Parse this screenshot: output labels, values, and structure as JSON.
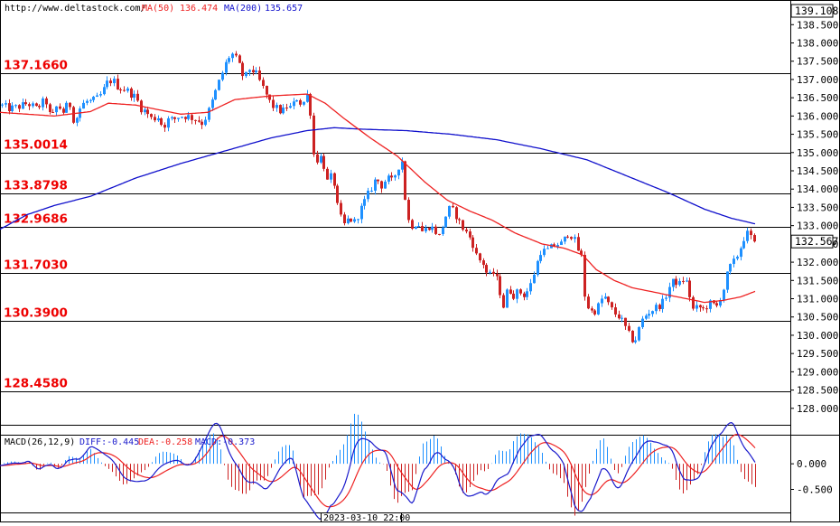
{
  "header": {
    "site_url": "http://www.deltastock.com/",
    "ma50_label": "MA(50)",
    "ma50_value": "136.474",
    "ma200_label": "MA(200)",
    "ma200_value": "135.657"
  },
  "colors": {
    "bull": "#1e90ff",
    "bear": "#cc2222",
    "ma50": "#ee2222",
    "ma200": "#1010cc",
    "level_text": "#ee0000",
    "diff": "#1a1acc",
    "dea": "#ee2222"
  },
  "chart_data": [
    {
      "type": "candlestick",
      "y_axis_ticks": [
        "128.000",
        "128.500",
        "129.000",
        "129.500",
        "130.000",
        "130.500",
        "131.000",
        "131.500",
        "132.000",
        "132.500",
        "133.000",
        "133.500",
        "134.000",
        "134.500",
        "135.000",
        "135.500",
        "136.000",
        "136.500",
        "137.000",
        "137.500",
        "138.000",
        "138.500"
      ],
      "ylim": [
        127.55,
        139.15
      ],
      "top_price_box": "139.108",
      "current_price_box": "132.567",
      "current_price": 132.567,
      "levels": [
        {
          "label": "137.1660",
          "value": 137.166
        },
        {
          "label": "135.0014",
          "value": 135.0014
        },
        {
          "label": "133.8798",
          "value": 133.8798
        },
        {
          "label": "132.9686",
          "value": 132.9686
        },
        {
          "label": "131.7030",
          "value": 131.703
        },
        {
          "label": "130.3900",
          "value": 130.39
        },
        {
          "label": "128.4580",
          "value": 128.458
        }
      ],
      "path_anchors": [
        [
          0,
          136.3
        ],
        [
          10,
          136.2
        ],
        [
          20,
          136.25
        ],
        [
          30,
          136.35
        ],
        [
          40,
          136.2
        ],
        [
          50,
          136.45
        ],
        [
          56,
          135.9
        ],
        [
          63,
          136.3
        ],
        [
          70,
          136.1
        ],
        [
          76,
          136.4
        ],
        [
          82,
          135.8
        ],
        [
          88,
          136.2
        ],
        [
          94,
          136.4
        ],
        [
          100,
          136.4
        ],
        [
          106,
          136.45
        ],
        [
          112,
          136.6
        ],
        [
          118,
          136.9
        ],
        [
          124,
          137.0
        ],
        [
          130,
          136.8
        ],
        [
          140,
          136.7
        ],
        [
          150,
          136.5
        ],
        [
          156,
          136.2
        ],
        [
          162,
          136.1
        ],
        [
          168,
          135.9
        ],
        [
          174,
          136.0
        ],
        [
          180,
          135.7
        ],
        [
          186,
          135.9
        ],
        [
          192,
          135.9
        ],
        [
          198,
          136.0
        ],
        [
          206,
          136.0
        ],
        [
          212,
          135.95
        ],
        [
          218,
          135.9
        ],
        [
          224,
          135.8
        ],
        [
          230,
          136.1
        ],
        [
          236,
          136.5
        ],
        [
          240,
          136.8
        ],
        [
          246,
          137.2
        ],
        [
          252,
          137.6
        ],
        [
          258,
          137.7
        ],
        [
          264,
          137.4
        ],
        [
          270,
          137.0
        ],
        [
          276,
          137.3
        ],
        [
          282,
          137.2
        ],
        [
          288,
          136.9
        ],
        [
          294,
          136.6
        ],
        [
          300,
          136.3
        ],
        [
          306,
          136.2
        ],
        [
          312,
          136.1
        ],
        [
          318,
          136.3
        ],
        [
          322,
          136.2
        ],
        [
          328,
          136.5
        ],
        [
          334,
          136.3
        ],
        [
          340,
          136.6
        ],
        [
          344,
          136.0
        ],
        [
          346,
          135.0
        ],
        [
          350,
          134.8
        ],
        [
          356,
          134.9
        ],
        [
          362,
          134.2
        ],
        [
          368,
          134.4
        ],
        [
          374,
          133.4
        ],
        [
          380,
          133.0
        ],
        [
          386,
          133.2
        ],
        [
          392,
          133.1
        ],
        [
          398,
          133.4
        ],
        [
          404,
          133.7
        ],
        [
          410,
          134.0
        ],
        [
          416,
          134.3
        ],
        [
          422,
          134.1
        ],
        [
          428,
          134.3
        ],
        [
          434,
          134.2
        ],
        [
          440,
          134.6
        ],
        [
          445,
          134.8
        ],
        [
          450,
          133.2
        ],
        [
          456,
          133.0
        ],
        [
          462,
          133.1
        ],
        [
          468,
          132.8
        ],
        [
          474,
          133.0
        ],
        [
          480,
          132.9
        ],
        [
          486,
          132.7
        ],
        [
          492,
          133.2
        ],
        [
          498,
          133.5
        ],
        [
          504,
          133.3
        ],
        [
          510,
          133.0
        ],
        [
          516,
          132.8
        ],
        [
          522,
          132.6
        ],
        [
          528,
          132.1
        ],
        [
          534,
          132.0
        ],
        [
          540,
          131.6
        ],
        [
          546,
          131.7
        ],
        [
          552,
          131.4
        ],
        [
          556,
          130.7
        ],
        [
          562,
          131.3
        ],
        [
          568,
          131.1
        ],
        [
          574,
          131.2
        ],
        [
          580,
          131.1
        ],
        [
          586,
          131.3
        ],
        [
          592,
          131.8
        ],
        [
          598,
          132.3
        ],
        [
          604,
          132.3
        ],
        [
          610,
          132.4
        ],
        [
          616,
          132.5
        ],
        [
          622,
          132.5
        ],
        [
          628,
          132.8
        ],
        [
          634,
          132.7
        ],
        [
          640,
          132.3
        ],
        [
          644,
          132.1
        ],
        [
          646,
          131.2
        ],
        [
          650,
          130.8
        ],
        [
          656,
          130.6
        ],
        [
          662,
          130.8
        ],
        [
          668,
          131.1
        ],
        [
          674,
          130.8
        ],
        [
          680,
          130.6
        ],
        [
          686,
          130.5
        ],
        [
          690,
          130.3
        ],
        [
          696,
          130.0
        ],
        [
          702,
          129.8
        ],
        [
          706,
          130.1
        ],
        [
          710,
          130.4
        ],
        [
          716,
          130.6
        ],
        [
          722,
          130.7
        ],
        [
          728,
          130.8
        ],
        [
          734,
          130.9
        ],
        [
          740,
          131.3
        ],
        [
          746,
          131.5
        ],
        [
          752,
          131.4
        ],
        [
          758,
          131.6
        ],
        [
          762,
          131.2
        ],
        [
          768,
          130.6
        ],
        [
          772,
          130.8
        ],
        [
          778,
          130.7
        ],
        [
          782,
          130.8
        ],
        [
          788,
          130.9
        ],
        [
          792,
          130.7
        ],
        [
          796,
          131.0
        ],
        [
          800,
          131.2
        ],
        [
          806,
          131.8
        ],
        [
          812,
          132.0
        ],
        [
          818,
          132.3
        ],
        [
          822,
          132.6
        ],
        [
          826,
          132.8
        ],
        [
          830,
          132.7
        ],
        [
          836,
          132.567
        ]
      ],
      "ma50_anchors": [
        [
          0,
          136.1
        ],
        [
          60,
          136.0
        ],
        [
          100,
          136.12
        ],
        [
          120,
          136.35
        ],
        [
          150,
          136.3
        ],
        [
          200,
          136.05
        ],
        [
          230,
          136.1
        ],
        [
          260,
          136.45
        ],
        [
          300,
          136.55
        ],
        [
          340,
          136.6
        ],
        [
          360,
          136.35
        ],
        [
          380,
          135.95
        ],
        [
          410,
          135.4
        ],
        [
          440,
          134.9
        ],
        [
          470,
          134.2
        ],
        [
          495,
          133.7
        ],
        [
          520,
          133.4
        ],
        [
          545,
          133.15
        ],
        [
          570,
          132.8
        ],
        [
          600,
          132.5
        ],
        [
          625,
          132.38
        ],
        [
          645,
          132.2
        ],
        [
          660,
          131.8
        ],
        [
          680,
          131.5
        ],
        [
          700,
          131.3
        ],
        [
          720,
          131.2
        ],
        [
          740,
          131.1
        ],
        [
          760,
          131.0
        ],
        [
          780,
          130.9
        ],
        [
          800,
          130.95
        ],
        [
          820,
          131.05
        ],
        [
          836,
          131.2
        ]
      ],
      "ma200_anchors": [
        [
          0,
          132.9
        ],
        [
          30,
          133.3
        ],
        [
          60,
          133.55
        ],
        [
          100,
          133.8
        ],
        [
          150,
          134.3
        ],
        [
          200,
          134.7
        ],
        [
          250,
          135.05
        ],
        [
          300,
          135.4
        ],
        [
          340,
          135.6
        ],
        [
          370,
          135.68
        ],
        [
          400,
          135.64
        ],
        [
          450,
          135.6
        ],
        [
          500,
          135.5
        ],
        [
          550,
          135.35
        ],
        [
          600,
          135.1
        ],
        [
          650,
          134.8
        ],
        [
          700,
          134.3
        ],
        [
          740,
          133.9
        ],
        [
          780,
          133.45
        ],
        [
          810,
          133.2
        ],
        [
          836,
          133.05
        ]
      ]
    },
    {
      "type": "macd",
      "title": "MACD(26,12,9)",
      "diff_label": "DIFF:-0.445",
      "dea_label": "DEA:-0.258",
      "macd_label": "MACD:-0.373",
      "y_axis_ticks": [
        "0.000",
        "-0.500"
      ],
      "ylim": [
        -0.95,
        0.55
      ]
    }
  ],
  "time_axis": {
    "cursor_label": "2023-03-10 22:00"
  }
}
